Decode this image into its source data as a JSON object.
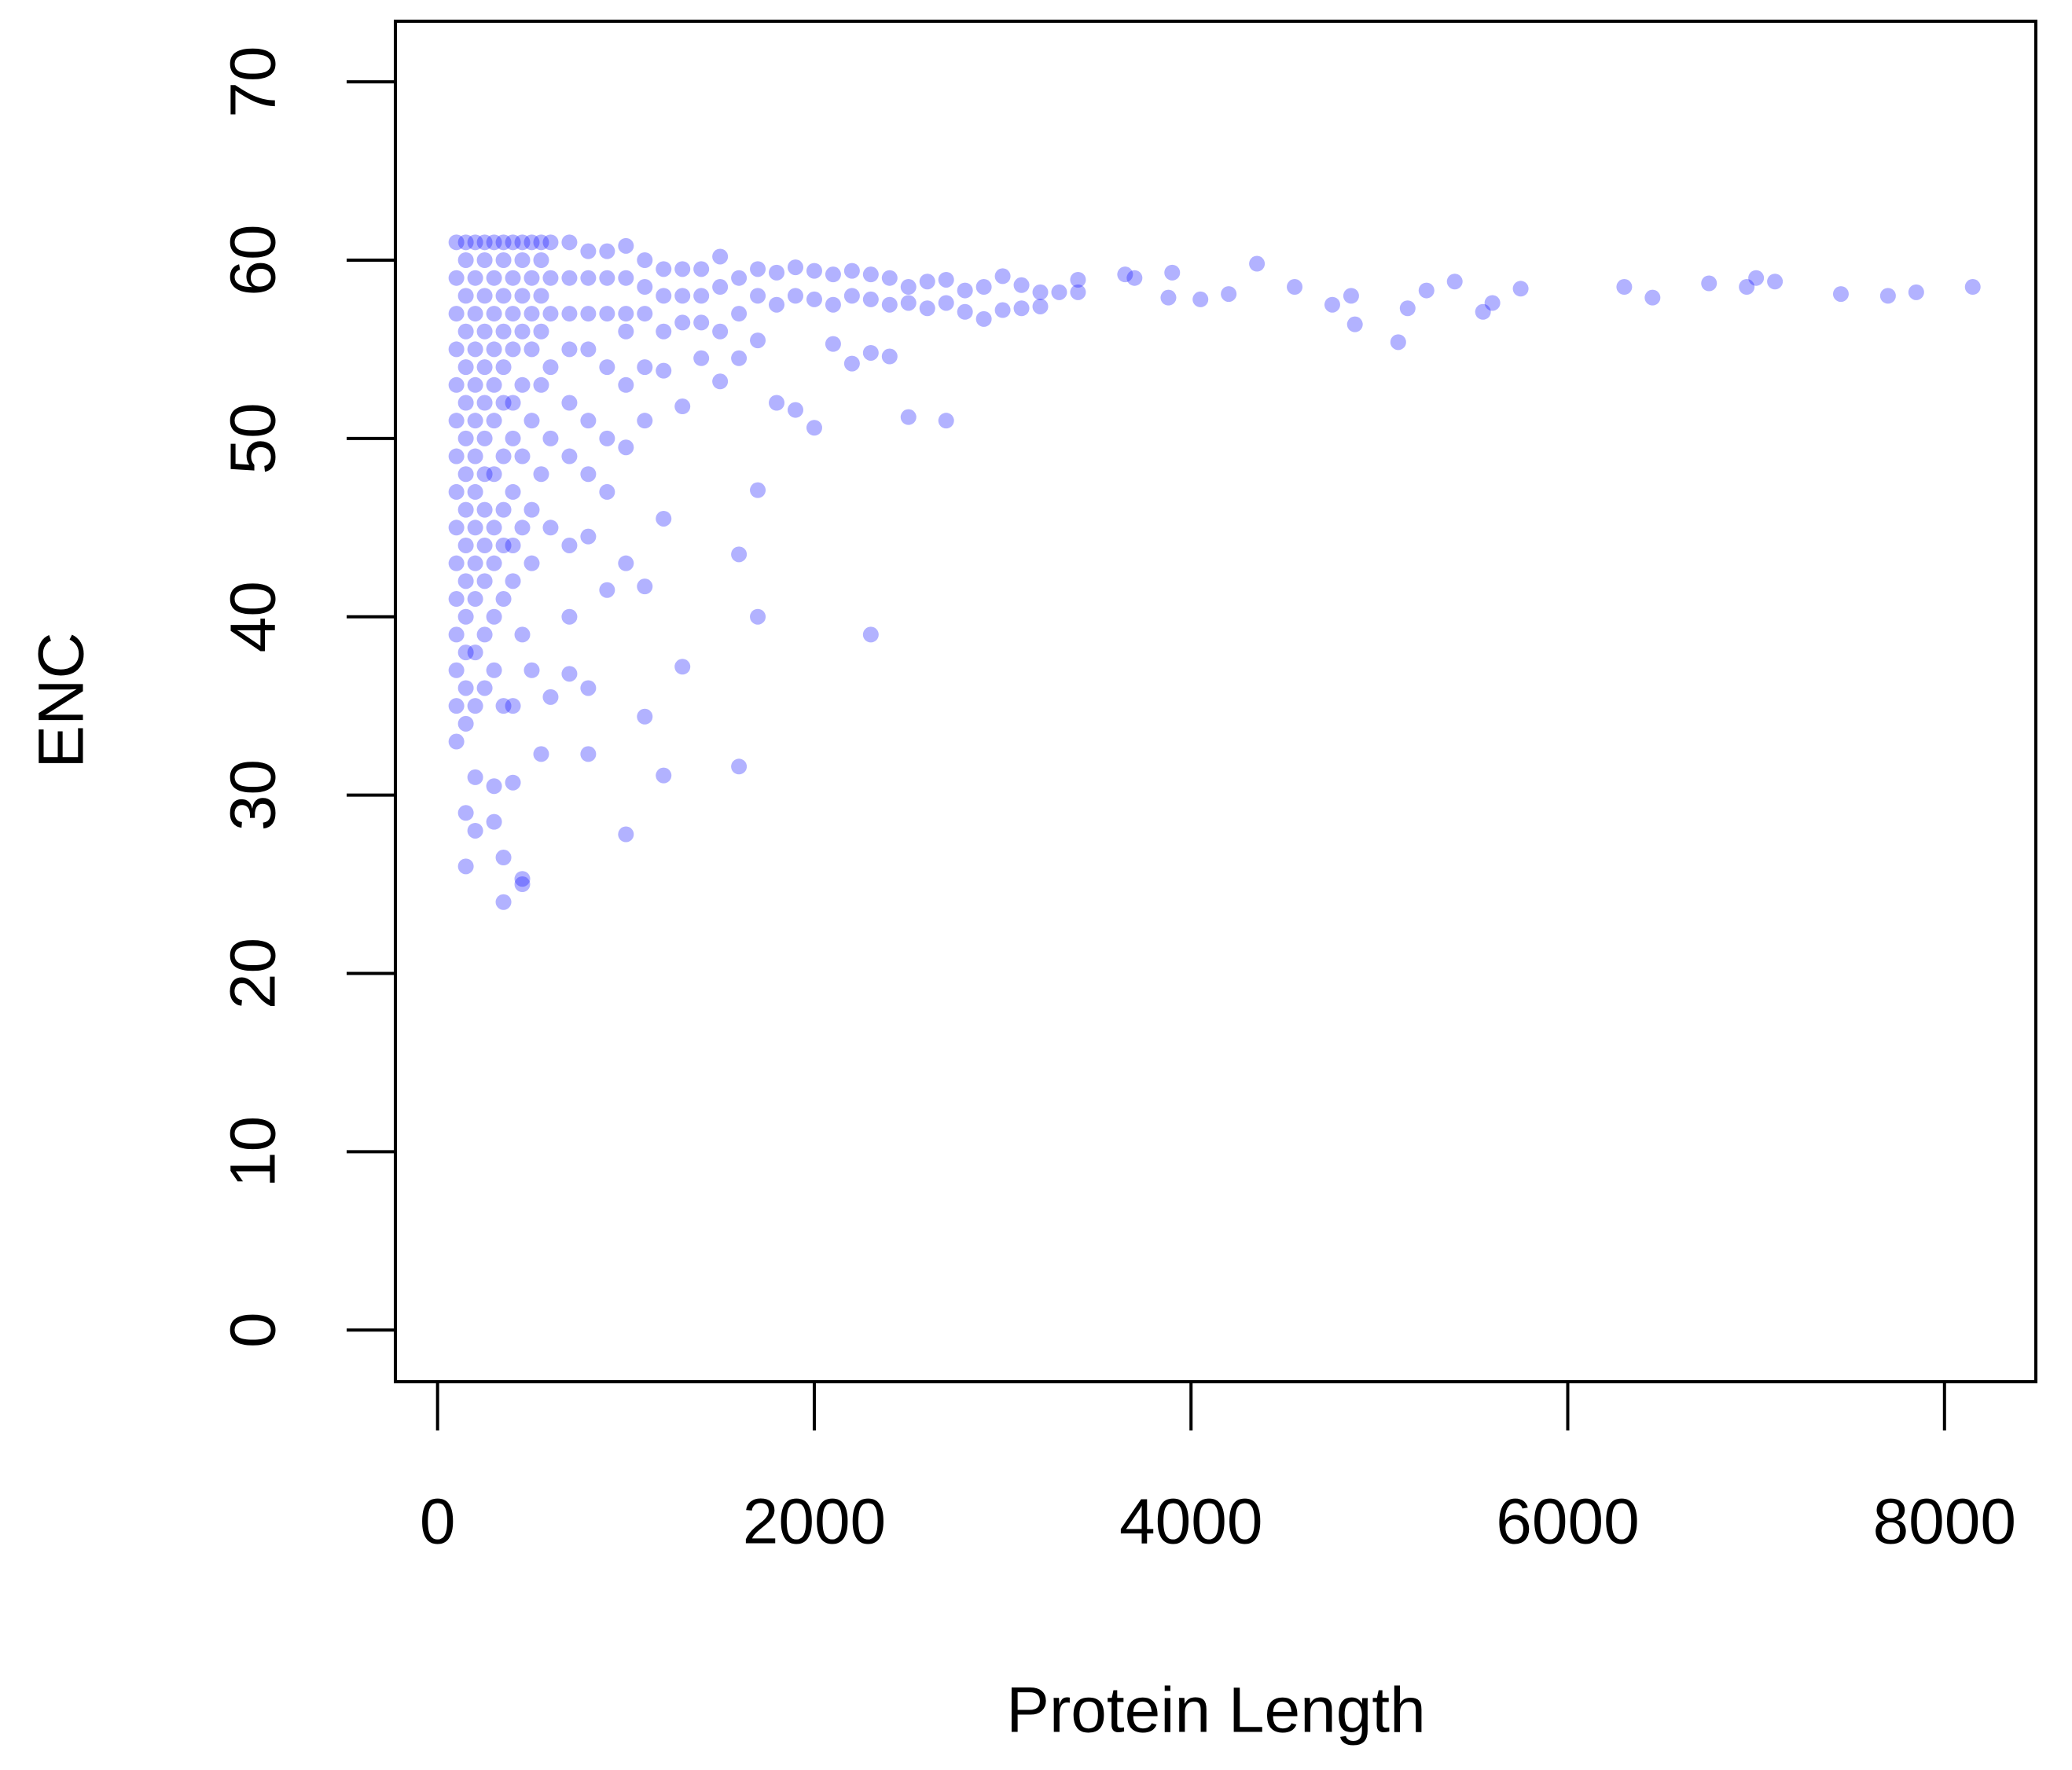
{
  "chart_data": {
    "type": "scatter",
    "xlabel": "Protein Length",
    "ylabel": "ENC",
    "color": "#0000ff",
    "xlim": [
      -224,
      8485
    ],
    "ylim": [
      -2.9,
      73.4
    ],
    "xticks": [
      0,
      2000,
      4000,
      6000,
      8000
    ],
    "yticks": [
      0,
      10,
      20,
      30,
      40,
      50,
      60,
      70
    ],
    "x": [
      100,
      100,
      100,
      100,
      100,
      100,
      100,
      100,
      100,
      100,
      100,
      100,
      100,
      100,
      100,
      150,
      150,
      150,
      150,
      150,
      150,
      150,
      150,
      150,
      150,
      150,
      150,
      150,
      150,
      150,
      150,
      150,
      200,
      200,
      200,
      200,
      200,
      200,
      200,
      200,
      200,
      200,
      200,
      200,
      200,
      200,
      200,
      250,
      250,
      250,
      250,
      250,
      250,
      250,
      250,
      250,
      250,
      250,
      250,
      250,
      300,
      300,
      300,
      300,
      300,
      300,
      300,
      300,
      300,
      300,
      300,
      300,
      300,
      350,
      350,
      350,
      350,
      350,
      350,
      350,
      350,
      350,
      350,
      350,
      350,
      350,
      400,
      400,
      400,
      400,
      400,
      400,
      400,
      400,
      400,
      400,
      400,
      450,
      450,
      450,
      450,
      450,
      450,
      450,
      450,
      450,
      450,
      500,
      500,
      500,
      500,
      500,
      500,
      500,
      500,
      550,
      550,
      550,
      550,
      550,
      550,
      550,
      600,
      600,
      600,
      600,
      600,
      600,
      600,
      700,
      700,
      700,
      700,
      700,
      700,
      700,
      700,
      700,
      800,
      800,
      800,
      800,
      800,
      800,
      800,
      800,
      800,
      900,
      900,
      900,
      900,
      900,
      900,
      900,
      1000,
      1000,
      1000,
      1000,
      1000,
      1000,
      1000,
      1000,
      1100,
      1100,
      1100,
      1100,
      1100,
      1100,
      1100,
      1200,
      1200,
      1200,
      1200,
      1200,
      1200,
      1300,
      1300,
      1300,
      1300,
      1300,
      1400,
      1400,
      1400,
      1400,
      1500,
      1500,
      1500,
      1500,
      1600,
      1600,
      1600,
      1600,
      1600,
      1700,
      1700,
      1700,
      1700,
      1700,
      1800,
      1800,
      1800,
      1900,
      1900,
      1900,
      2000,
      2000,
      2000,
      2100,
      2100,
      2100,
      2200,
      2200,
      2200,
      2300,
      2300,
      2300,
      2300,
      2400,
      2400,
      2400,
      2500,
      2500,
      2500,
      2600,
      2600,
      2700,
      2700,
      2700,
      2800,
      2800,
      2900,
      2900,
      3000,
      3000,
      3100,
      3100,
      3200,
      3200,
      3300,
      3400,
      3400,
      3650,
      3700,
      3900,
      3880,
      4050,
      4350,
      4200,
      4550,
      4750,
      4850,
      4870,
      5100,
      5150,
      5250,
      5400,
      5550,
      5600,
      5750,
      6300,
      6450,
      6750,
      6950,
      7000,
      7100,
      7450,
      7700,
      7850,
      8150
    ],
    "values": [
      61,
      59,
      57,
      55,
      53,
      51,
      49,
      47,
      45,
      43,
      41,
      39,
      37,
      35,
      33,
      61,
      60,
      58,
      56,
      54,
      52,
      50,
      48,
      46,
      44,
      42,
      40,
      38,
      36,
      34,
      29,
      26,
      61,
      59,
      57,
      55,
      53,
      51,
      49,
      47,
      45,
      43,
      41,
      38,
      35,
      31,
      28,
      61,
      60,
      58,
      56,
      54,
      52,
      50,
      48,
      46,
      44,
      42,
      39,
      36,
      61,
      59,
      57,
      55,
      53,
      51,
      48,
      45,
      43,
      40,
      37,
      30.5,
      28.5,
      61,
      60,
      58,
      56,
      54,
      52,
      49,
      46,
      44,
      41,
      35,
      26.5,
      24,
      61,
      59,
      57,
      55,
      52,
      50,
      47,
      44,
      42,
      35,
      30.7,
      61,
      60,
      58,
      56,
      53,
      49,
      45,
      39,
      25,
      25.3,
      61,
      59,
      57,
      55,
      51,
      46,
      43,
      37,
      61,
      60,
      58,
      56,
      53,
      48,
      32.3,
      61,
      59,
      57,
      54,
      50,
      45,
      35.5,
      61,
      59,
      57,
      55,
      52,
      49,
      44,
      40,
      36.8,
      60.5,
      59,
      57,
      55,
      51,
      48,
      44.5,
      32.3,
      36,
      60.5,
      59,
      57,
      54,
      50,
      47,
      41.5,
      60.8,
      59,
      57,
      56,
      53,
      49.5,
      43,
      27.8,
      60,
      58.5,
      57,
      54,
      51,
      41.7,
      34.4,
      59.5,
      58,
      56,
      53.8,
      45.5,
      31.1,
      59.5,
      58,
      56.5,
      51.8,
      37.2,
      59.5,
      58,
      56.5,
      54.5,
      60.2,
      58.5,
      56,
      53.2,
      59,
      57,
      54.5,
      43.5,
      31.6,
      59.5,
      58,
      55.5,
      47.1,
      40,
      59.3,
      57.5,
      52,
      59.6,
      58,
      51.6,
      59.4,
      57.8,
      50.6,
      59.2,
      57.5,
      55.3,
      59.4,
      58,
      54.2,
      59.2,
      57.8,
      54.8,
      39,
      59,
      57.5,
      54.6,
      58.5,
      57.6,
      51.2,
      58.8,
      57.3,
      58.9,
      57.6,
      51,
      58.3,
      57.1,
      58.5,
      56.7,
      59.1,
      57.2,
      57.3,
      58.6,
      58.2,
      57.4,
      58.2,
      58.9,
      58.2,
      59.2,
      59,
      59.3,
      57.9,
      57.8,
      59.8,
      58.1,
      58.5,
      57.5,
      58,
      56.4,
      55.4,
      57.3,
      58.3,
      58.8,
      57.1,
      57.6,
      58.4,
      58.5,
      57.9,
      58.7,
      58.5,
      59,
      58.8,
      58.1,
      58,
      58.2,
      58.5
    ]
  }
}
